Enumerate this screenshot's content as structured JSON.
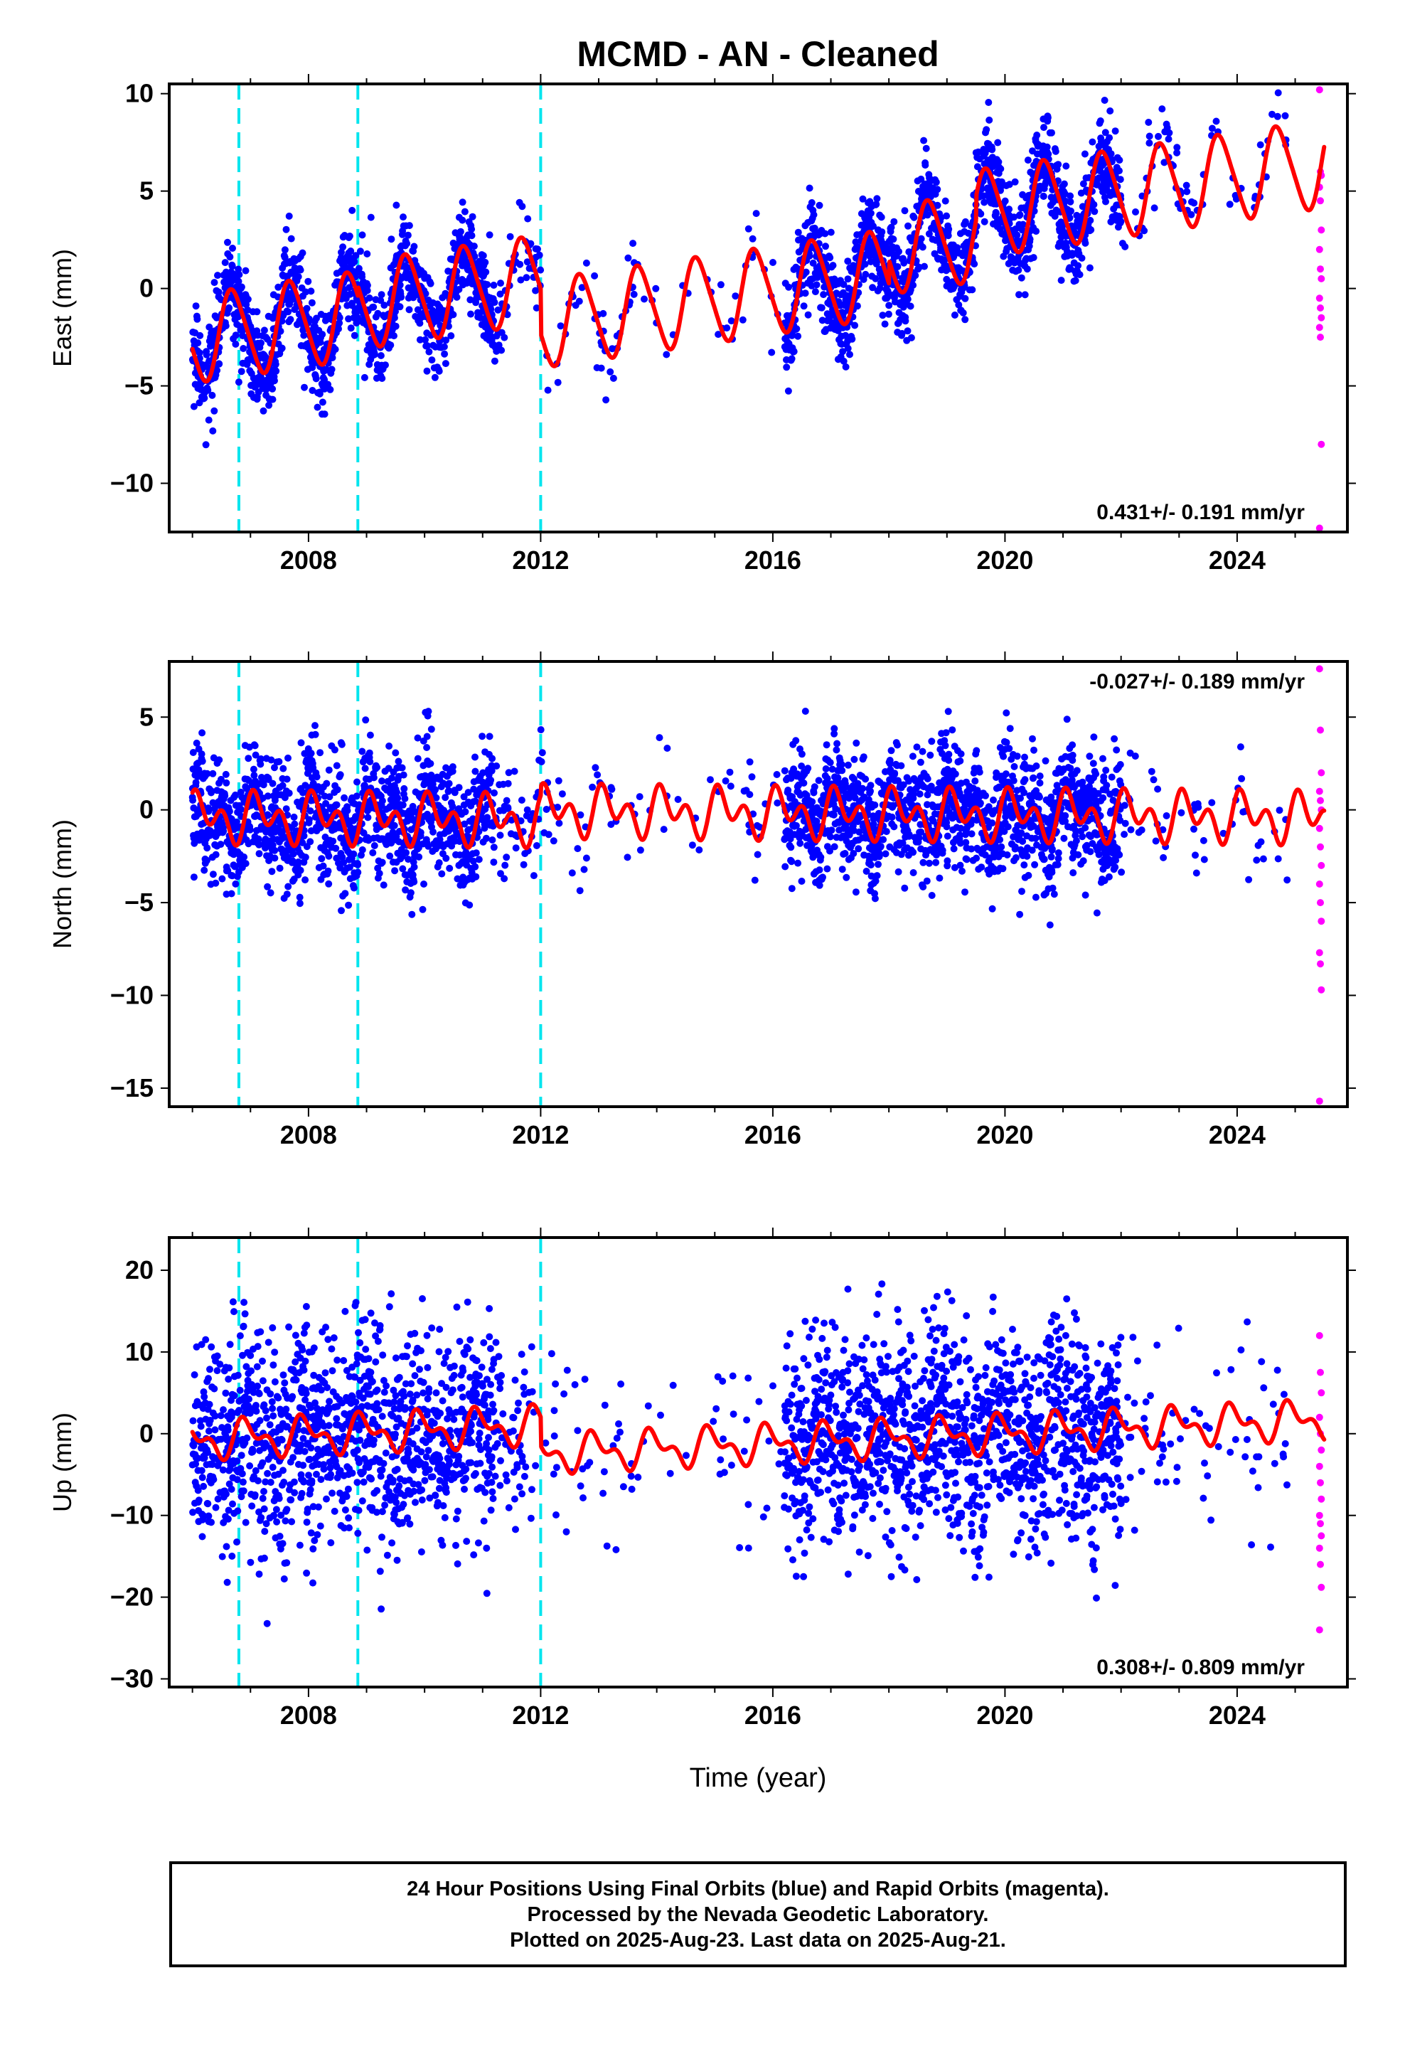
{
  "title": "MCMD  - AN - Cleaned",
  "xlabel": "Time (year)",
  "x_tick_labels": [
    "2008",
    "2012",
    "2016",
    "2020",
    "2024"
  ],
  "colors": {
    "final_orbits": "#0000ff",
    "rapid_orbits": "#ff00ff",
    "model_fit": "#ff0000",
    "offsets": "#00e5ee"
  },
  "caption": {
    "line1": "24 Hour Positions Using Final Orbits (blue) and Rapid Orbits (magenta).",
    "line2": "Processed by the Nevada Geodetic Laboratory.",
    "line3": "Plotted on 2025-Aug-23. Last data on 2025-Aug-21."
  },
  "chart_data": [
    {
      "type": "scatter",
      "component": "east",
      "ylabel": "East (mm)",
      "ylim": [
        -12.5,
        10.5
      ],
      "xlim": [
        2005.6,
        2025.9
      ],
      "y_ticks": [
        10,
        5,
        0,
        -5,
        -10
      ],
      "y_tick_labels": [
        "10",
        "5",
        "0",
        "−5",
        "−10"
      ],
      "rate_label": "0.431+/- 0.191 mm/yr",
      "rate_label_position": "bottom-right",
      "offset_epochs": [
        2006.8,
        2008.85,
        2012.0
      ],
      "trend": {
        "a": -2.6,
        "b": 0.431,
        "t0": 2006.0
      },
      "steps": [
        [
          2008.85,
          0.5
        ],
        [
          2012.0,
          -2.3
        ],
        [
          2018.0,
          1.2
        ],
        [
          2019.5,
          1.2
        ]
      ],
      "annual_amplitude": 2.2,
      "semiannual_amplitude": 0.3,
      "annual_phase": 0.55,
      "scatter_sigma": 1.2,
      "fit_range": [
        2006.0,
        2025.5
      ],
      "rapid_points": [
        10.2,
        6.0,
        5.8,
        5.2,
        4.5,
        3.0,
        2.0,
        1.0,
        0.5,
        -0.5,
        -1.0,
        -1.5,
        -2.0,
        -2.5,
        -8.0,
        -12.3
      ]
    },
    {
      "type": "scatter",
      "component": "north",
      "ylabel": "North (mm)",
      "ylim": [
        -16.0,
        8.0
      ],
      "xlim": [
        2005.6,
        2025.9
      ],
      "y_ticks": [
        5,
        0,
        -5,
        -10,
        -15
      ],
      "y_tick_labels": [
        "5",
        "0",
        "−5",
        "−10",
        "−15"
      ],
      "rate_label": "-0.027+/- 0.189 mm/yr",
      "rate_label_position": "top-right",
      "offset_epochs": [
        2006.8,
        2008.85,
        2012.0
      ],
      "trend": {
        "a": -0.4,
        "b": -0.027,
        "t0": 2006.0
      },
      "steps": [
        [
          2012.0,
          0.5
        ]
      ],
      "annual_amplitude": 0.8,
      "semiannual_amplitude": 0.9,
      "annual_phase": 0.1,
      "scatter_sigma": 1.6,
      "fit_range": [
        2006.0,
        2025.5
      ],
      "rapid_points": [
        7.6,
        4.3,
        2.0,
        1.0,
        0.5,
        0.0,
        -1.0,
        -2.0,
        -3.0,
        -4.0,
        -5.0,
        -6.0,
        -7.7,
        -8.3,
        -9.7,
        -15.7
      ]
    },
    {
      "type": "scatter",
      "component": "up",
      "ylabel": "Up (mm)",
      "ylim": [
        -31.0,
        24.0
      ],
      "xlim": [
        2005.6,
        2025.9
      ],
      "y_ticks": [
        20,
        10,
        0,
        -10,
        -20,
        -30
      ],
      "y_tick_labels": [
        "20",
        "10",
        "0",
        "−10",
        "−20",
        "−30"
      ],
      "rate_label": "0.308+/- 0.809 mm/yr",
      "rate_label_position": "bottom-right",
      "offset_epochs": [
        2006.8,
        2008.85,
        2012.0
      ],
      "trend": {
        "a": -0.8,
        "b": 0.308,
        "t0": 2006.0
      },
      "steps": [
        [
          2012.0,
          -3.5
        ]
      ],
      "annual_amplitude": 1.8,
      "semiannual_amplitude": 1.2,
      "annual_phase": 0.3,
      "scatter_sigma": 6.5,
      "fit_range": [
        2006.0,
        2025.5
      ],
      "rapid_points": [
        12.0,
        7.5,
        5.0,
        2.0,
        0.0,
        -2.0,
        -4.0,
        -6.0,
        -8.0,
        -10.0,
        -11.0,
        -12.5,
        -14.0,
        -16.0,
        -18.8,
        -24.0
      ]
    }
  ]
}
